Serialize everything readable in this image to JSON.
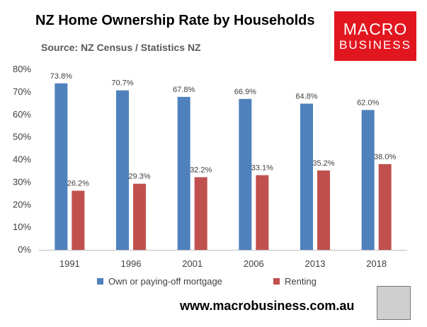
{
  "header": {
    "title": "NZ Home Ownership Rate by Households",
    "source": "Source: NZ Census / Statistics NZ"
  },
  "logo": {
    "line1": "MACRO",
    "line2": "BUSINESS"
  },
  "footer": {
    "url": "www.macrobusiness.com.au"
  },
  "colors": {
    "own": "#4f81bd",
    "rent": "#c0504d",
    "logo_bg": "#e2161f"
  },
  "chart_data": {
    "type": "bar",
    "title": "NZ Home Ownership Rate by Households",
    "categories": [
      "1991",
      "1996",
      "2001",
      "2006",
      "2013",
      "2018"
    ],
    "series": [
      {
        "name": "Own or paying-off mortgage",
        "values": [
          73.8,
          70.7,
          67.8,
          66.9,
          64.8,
          62.0
        ],
        "labels": [
          "73.8%",
          "70.7%",
          "67.8%",
          "66.9%",
          "64.8%",
          "62.0%"
        ]
      },
      {
        "name": "Renting",
        "values": [
          26.2,
          29.3,
          32.2,
          33.1,
          35.2,
          38.0
        ],
        "labels": [
          "26.2%",
          "29.3%",
          "32.2%",
          "33.1%",
          "35.2%",
          "38.0%"
        ]
      }
    ],
    "ylim": [
      0,
      80
    ],
    "yticks": [
      "0%",
      "10%",
      "20%",
      "30%",
      "40%",
      "50%",
      "60%",
      "70%",
      "80%"
    ],
    "grid": false,
    "legend_position": "bottom"
  }
}
